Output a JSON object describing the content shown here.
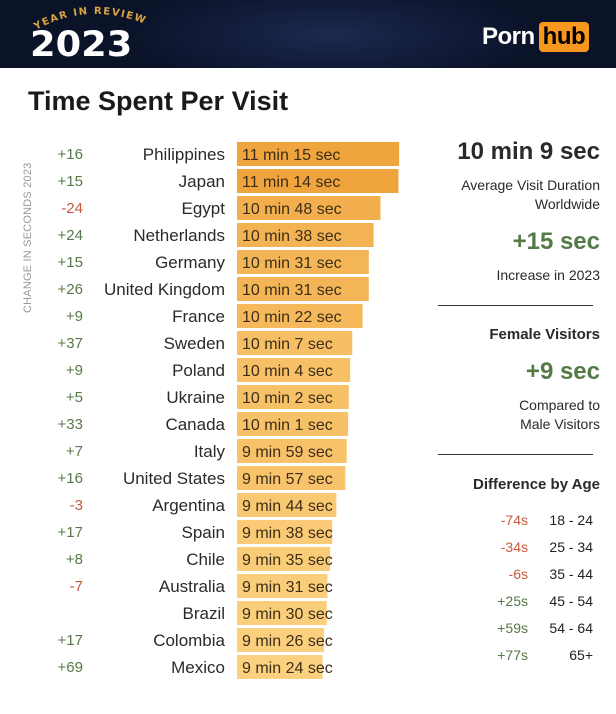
{
  "header": {
    "year_in_review": "YEAR IN REVIEW",
    "year": "2023",
    "logo_part1": "Porn",
    "logo_part2": "hub"
  },
  "title": "Time Spent Per Visit",
  "change_axis_label": "CHANGE IN SECONDS 2023",
  "colors": {
    "header_bg": "#0b1329",
    "brand_orange": "#f7971d",
    "bar_dark": "#f0a43d",
    "bar_light": "#fbd07e",
    "positive": "#557a47",
    "negative": "#c8593c"
  },
  "chart_data": {
    "type": "bar",
    "orientation": "horizontal",
    "title": "Time Spent Per Visit",
    "categories": [
      "Philippines",
      "Japan",
      "Egypt",
      "Netherlands",
      "Germany",
      "United Kingdom",
      "France",
      "Sweden",
      "Poland",
      "Ukraine",
      "Canada",
      "Italy",
      "United States",
      "Argentina",
      "Spain",
      "Chile",
      "Australia",
      "Brazil",
      "Colombia",
      "Mexico"
    ],
    "values_seconds": [
      675,
      674,
      648,
      638,
      631,
      631,
      622,
      607,
      604,
      602,
      601,
      599,
      597,
      584,
      578,
      575,
      571,
      570,
      566,
      564
    ],
    "value_labels": [
      "11 min 15 sec",
      "11 min 14 sec",
      "10 min 48 sec",
      "10 min 38 sec",
      "10 min 31 sec",
      "10 min 31 sec",
      "10 min 22 sec",
      "10 min 7 sec",
      "10 min 4 sec",
      "10 min 2 sec",
      "10 min 1 sec",
      "9 min 59 sec",
      "9 min 57 sec",
      "9 min 44 sec",
      "9 min 38 sec",
      "9 min 35 sec",
      "9 min 31 sec",
      "9 min 30 sec",
      "9 min 26 sec",
      "9 min 24 sec"
    ],
    "change_labels": [
      "+16",
      "+15",
      "-24",
      "+24",
      "+15",
      "+26",
      "+9",
      "+37",
      "+9",
      "+5",
      "+33",
      "+7",
      "+16",
      "-3",
      "+17",
      "+8",
      "-7",
      "",
      "+17",
      "+69"
    ],
    "xlabel": "",
    "ylabel": "",
    "grid": false,
    "legend": "none"
  },
  "summary": {
    "worldwide_value": "10 min 9 sec",
    "worldwide_label": "Average Visit Duration\nWorldwide",
    "increase_value": "+15 sec",
    "increase_label": "Increase in 2023",
    "female_heading": "Female Visitors",
    "female_value": "+9 sec",
    "female_label": "Compared to\nMale Visitors",
    "age_heading": "Difference by Age",
    "age_rows": [
      {
        "diff": "-74s",
        "group": "18 - 24",
        "sign": "neg"
      },
      {
        "diff": "-34s",
        "group": "25 - 34",
        "sign": "neg"
      },
      {
        "diff": "-6s",
        "group": "35 - 44",
        "sign": "neg"
      },
      {
        "diff": "+25s",
        "group": "45 - 54",
        "sign": "pos"
      },
      {
        "diff": "+59s",
        "group": "54 - 64",
        "sign": "pos"
      },
      {
        "diff": "+77s",
        "group": "65+",
        "sign": "pos"
      }
    ]
  }
}
